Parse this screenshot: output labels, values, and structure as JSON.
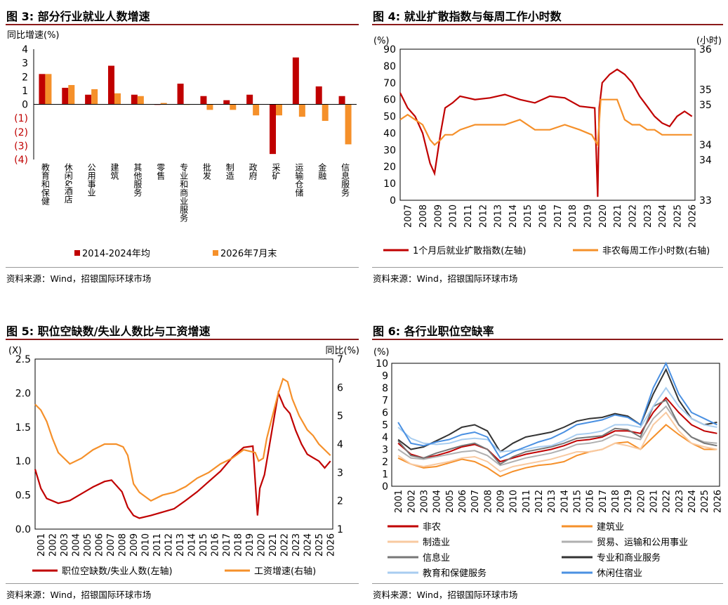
{
  "panels": {
    "p3": {
      "title": "图 3: 部分行业就业人数增速",
      "source": "资料来源：Wind，招银国际环球市场"
    },
    "p4": {
      "title": "图 4: 就业扩散指数与每周工作小时数",
      "source": "资料来源：Wind，招银国际环球市场"
    },
    "p5": {
      "title": "图 5: 职位空缺数/失业人数比与工资增速",
      "source": "资料来源：Wind，招银国际环球市场"
    },
    "p6": {
      "title": "图 6: 各行业职位空缺率",
      "source": "资料来源：Wind，招银国际环球市场"
    }
  },
  "colors": {
    "dark_red": "#c00000",
    "orange": "#f5902a",
    "light_orange": "#f8c9a0",
    "grey": "#b0b0b0",
    "dark_grey": "#777777",
    "black": "#333333",
    "light_blue": "#a8cdf0",
    "blue": "#4a90e2"
  },
  "chart_data": [
    {
      "id": "p3",
      "type": "bar",
      "ylabel": "同比增速(%)",
      "ylim": [
        -4,
        4
      ],
      "yticks": [
        "4",
        "3",
        "2",
        "1",
        "0",
        "(1)",
        "(2)",
        "(3)",
        "(4)"
      ],
      "categories": [
        "教育和保健",
        "休闲&酒店",
        "公用事业",
        "建筑",
        "其他服务",
        "零售",
        "专业和商业服务",
        "批发",
        "制造",
        "政府",
        "采矿",
        "运输仓储",
        "金融",
        "信息服务"
      ],
      "series": [
        {
          "name": "2014-2024年均",
          "color": "#c00000",
          "values": [
            2.2,
            1.2,
            0.7,
            2.8,
            0.7,
            0.0,
            1.5,
            0.6,
            0.3,
            0.7,
            -3.6,
            3.4,
            1.3,
            0.6
          ]
        },
        {
          "name": "2026年7月末",
          "color": "#f5902a",
          "values": [
            2.2,
            1.4,
            1.1,
            0.8,
            0.6,
            0.1,
            0.0,
            -0.4,
            -0.4,
            -0.8,
            -0.8,
            -0.9,
            -1.2,
            -2.9
          ]
        }
      ],
      "legend": "bottom"
    },
    {
      "id": "p4",
      "type": "line",
      "ylabel_left": "(%)",
      "ylabel_right": "(小时)",
      "ylim_left": [
        0,
        90
      ],
      "ylim_right": [
        33,
        36
      ],
      "yticks_left": [
        "0",
        "10",
        "20",
        "30",
        "40",
        "50",
        "60",
        "70",
        "80",
        "90"
      ],
      "yticks_right": [
        "33",
        "34",
        "34",
        "35",
        "35",
        "36"
      ],
      "x_labels": [
        "2007",
        "2008",
        "2009",
        "2010",
        "2011",
        "2012",
        "2013",
        "2014",
        "2015",
        "2016",
        "2017",
        "2018",
        "2019",
        "2020",
        "2021",
        "2022",
        "2023",
        "2024",
        "2025",
        "2026"
      ],
      "series": [
        {
          "name": "1个月后就业扩散指数(左轴)",
          "axis": "left",
          "color": "#c00000",
          "x": [
            2007.0,
            2007.5,
            2008.0,
            2008.5,
            2009.0,
            2009.3,
            2009.7,
            2010.0,
            2010.5,
            2011.0,
            2012.0,
            2013.0,
            2014.0,
            2015.0,
            2016.0,
            2017.0,
            2018.0,
            2019.0,
            2020.0,
            2020.2,
            2020.3,
            2020.5,
            2021.0,
            2021.5,
            2022.0,
            2022.5,
            2023.0,
            2023.5,
            2024.0,
            2024.5,
            2025.0,
            2025.5,
            2026.0,
            2026.5
          ],
          "y": [
            64,
            55,
            50,
            40,
            22,
            16,
            40,
            55,
            58,
            62,
            60,
            61,
            63,
            60,
            58,
            62,
            61,
            56,
            55,
            2,
            55,
            70,
            75,
            78,
            75,
            70,
            62,
            56,
            50,
            46,
            44,
            50,
            53,
            50
          ]
        },
        {
          "name": "非农每周工作小时数(右轴)",
          "axis": "right",
          "color": "#f5902a",
          "x": [
            2007.0,
            2007.5,
            2008.0,
            2008.5,
            2009.0,
            2009.3,
            2009.7,
            2010.0,
            2010.5,
            2011.0,
            2012.0,
            2013.0,
            2014.0,
            2015.0,
            2016.0,
            2017.0,
            2018.0,
            2019.0,
            2019.8,
            2020.2,
            2020.4,
            2021.0,
            2021.5,
            2022.0,
            2022.5,
            2023.0,
            2023.5,
            2024.0,
            2024.5,
            2025.0,
            2025.5,
            2026.0,
            2026.5
          ],
          "y": [
            34.6,
            34.7,
            34.6,
            34.5,
            34.2,
            34.1,
            34.2,
            34.3,
            34.3,
            34.4,
            34.5,
            34.5,
            34.5,
            34.6,
            34.4,
            34.4,
            34.5,
            34.4,
            34.3,
            34.1,
            35.0,
            35.0,
            35.0,
            34.6,
            34.5,
            34.5,
            34.4,
            34.4,
            34.3,
            34.3,
            34.3,
            34.3,
            34.3
          ]
        }
      ],
      "legend": "bottom"
    },
    {
      "id": "p5",
      "type": "line",
      "ylabel_left": "(X)",
      "ylabel_right": "同比(%)",
      "ylim_left": [
        0,
        2.5
      ],
      "ylim_right": [
        1,
        7
      ],
      "yticks_left": [
        "0.0",
        "0.5",
        "1.0",
        "1.5",
        "2.0",
        "2.5"
      ],
      "yticks_right": [
        "1",
        "2",
        "3",
        "4",
        "5",
        "6",
        "7"
      ],
      "x_labels": [
        "2001",
        "2002",
        "2003",
        "2004",
        "2005",
        "2006",
        "2007",
        "2008",
        "2009",
        "2010",
        "2011",
        "2012",
        "2013",
        "2014",
        "2015",
        "2016",
        "2017",
        "2018",
        "2019",
        "2020",
        "2021",
        "2022",
        "2023",
        "2024",
        "2025",
        "2026"
      ],
      "series": [
        {
          "name": "职位空缺数/失业人数(左轴)",
          "axis": "left",
          "color": "#c00000",
          "x": [
            2001.0,
            2001.5,
            2002.0,
            2003.0,
            2004.0,
            2005.0,
            2006.0,
            2007.0,
            2007.6,
            2008.5,
            2009.0,
            2009.5,
            2010.0,
            2011.0,
            2012.0,
            2013.0,
            2014.0,
            2015.0,
            2016.0,
            2017.0,
            2018.0,
            2019.0,
            2019.8,
            2020.2,
            2020.4,
            2020.8,
            2021.0,
            2021.5,
            2022.0,
            2022.5,
            2023.0,
            2023.5,
            2024.0,
            2024.5,
            2025.0,
            2025.5,
            2026.0,
            2026.5
          ],
          "y": [
            0.88,
            0.6,
            0.45,
            0.38,
            0.42,
            0.52,
            0.62,
            0.7,
            0.72,
            0.55,
            0.32,
            0.2,
            0.16,
            0.2,
            0.25,
            0.3,
            0.42,
            0.55,
            0.7,
            0.85,
            1.05,
            1.2,
            1.22,
            0.2,
            0.6,
            0.8,
            1.0,
            1.5,
            2.0,
            1.8,
            1.7,
            1.45,
            1.25,
            1.1,
            1.05,
            1.0,
            0.9,
            1.0
          ]
        },
        {
          "name": "工资增速(右轴)",
          "axis": "right",
          "color": "#f5902a",
          "x": [
            2001.0,
            2001.5,
            2002.0,
            2002.5,
            2003.0,
            2004.0,
            2005.0,
            2006.0,
            2007.0,
            2008.0,
            2008.6,
            2009.0,
            2009.5,
            2010.0,
            2011.0,
            2012.0,
            2013.0,
            2014.0,
            2015.0,
            2016.0,
            2017.0,
            2018.0,
            2019.0,
            2020.0,
            2020.3,
            2020.7,
            2021.0,
            2021.5,
            2022.0,
            2022.4,
            2022.8,
            2023.2,
            2023.8,
            2024.5,
            2025.0,
            2025.5,
            2026.0,
            2026.5
          ],
          "y": [
            5.4,
            5.2,
            4.8,
            4.2,
            3.7,
            3.3,
            3.5,
            3.8,
            4.0,
            4.0,
            3.9,
            3.6,
            2.6,
            2.3,
            2.0,
            2.2,
            2.3,
            2.5,
            2.8,
            3.0,
            3.3,
            3.5,
            3.8,
            3.7,
            3.4,
            3.5,
            4.2,
            5.0,
            5.8,
            6.3,
            6.2,
            5.6,
            5.0,
            4.5,
            4.3,
            4.0,
            3.8,
            3.6
          ]
        }
      ],
      "legend": "bottom"
    },
    {
      "id": "p6",
      "type": "line",
      "ylabel": "(%)",
      "ylim": [
        0,
        10
      ],
      "yticks": [
        "0",
        "1",
        "2",
        "3",
        "4",
        "5",
        "6",
        "7",
        "8",
        "9",
        "10"
      ],
      "x_labels": [
        "2001",
        "2002",
        "2003",
        "2004",
        "2005",
        "2006",
        "2007",
        "2008",
        "2009",
        "2010",
        "2011",
        "2012",
        "2013",
        "2014",
        "2015",
        "2016",
        "2017",
        "2018",
        "2019",
        "2020",
        "2021",
        "2022",
        "2023",
        "2024",
        "2025",
        "2026"
      ],
      "x": [
        2001,
        2002,
        2003,
        2004,
        2005,
        2006,
        2007,
        2008,
        2009,
        2010,
        2011,
        2012,
        2013,
        2014,
        2015,
        2016,
        2017,
        2018,
        2019,
        2020,
        2021,
        2022,
        2023,
        2024,
        2025,
        2026
      ],
      "series": [
        {
          "name": "非农",
          "color": "#c00000",
          "y": [
            3.5,
            2.6,
            2.3,
            2.5,
            2.8,
            3.2,
            3.4,
            3.0,
            2.0,
            2.3,
            2.6,
            2.8,
            3.0,
            3.3,
            3.7,
            3.8,
            4.0,
            4.5,
            4.5,
            4.3,
            6.0,
            7.2,
            6.0,
            5.0,
            4.5,
            4.3
          ]
        },
        {
          "name": "建筑业",
          "color": "#f5902a",
          "y": [
            2.3,
            1.8,
            1.5,
            1.6,
            1.9,
            2.2,
            2.0,
            1.5,
            0.8,
            1.2,
            1.5,
            1.7,
            1.8,
            2.0,
            2.5,
            2.8,
            3.0,
            3.5,
            3.6,
            3.0,
            4.0,
            5.0,
            4.2,
            3.5,
            3.0,
            3.0
          ]
        },
        {
          "name": "制造业",
          "color": "#f8c9a0",
          "y": [
            2.5,
            1.8,
            1.6,
            1.8,
            2.0,
            2.3,
            2.4,
            2.0,
            1.2,
            1.6,
            1.8,
            2.0,
            2.2,
            2.5,
            2.8,
            2.8,
            3.0,
            3.5,
            3.3,
            3.0,
            5.0,
            6.0,
            4.5,
            3.5,
            3.2,
            3.0
          ]
        },
        {
          "name": "贸易、运输和公用事业",
          "color": "#b0b0b0",
          "y": [
            3.0,
            2.3,
            2.2,
            2.4,
            2.6,
            2.8,
            2.9,
            2.5,
            1.7,
            2.0,
            2.3,
            2.5,
            2.7,
            3.0,
            3.4,
            3.5,
            3.7,
            4.2,
            4.0,
            3.8,
            5.5,
            6.5,
            5.0,
            4.0,
            3.6,
            3.5
          ]
        },
        {
          "name": "信息业",
          "color": "#777777",
          "y": [
            3.7,
            2.5,
            2.3,
            2.7,
            3.0,
            3.3,
            3.5,
            3.0,
            1.8,
            2.4,
            2.8,
            3.0,
            3.2,
            3.5,
            3.9,
            4.0,
            4.1,
            4.7,
            4.6,
            4.0,
            6.5,
            7.0,
            5.0,
            4.0,
            3.5,
            3.3
          ]
        },
        {
          "name": "专业和商业服务",
          "color": "#333333",
          "y": [
            3.8,
            3.0,
            3.2,
            3.7,
            4.2,
            4.8,
            5.0,
            4.5,
            2.8,
            3.5,
            4.0,
            4.2,
            4.4,
            4.8,
            5.3,
            5.5,
            5.6,
            5.9,
            5.7,
            5.0,
            7.5,
            9.5,
            7.0,
            5.5,
            5.0,
            5.2
          ]
        },
        {
          "name": "教育和保健服务",
          "color": "#a8cdf0",
          "y": [
            4.8,
            3.9,
            3.5,
            3.4,
            3.5,
            3.8,
            3.9,
            3.8,
            2.8,
            2.9,
            3.0,
            3.2,
            3.3,
            3.7,
            4.2,
            4.3,
            4.5,
            5.0,
            5.0,
            4.8,
            6.5,
            8.0,
            6.5,
            5.5,
            5.0,
            4.8
          ]
        },
        {
          "name": "休闲住宿业",
          "color": "#4a90e2",
          "y": [
            5.2,
            3.5,
            3.3,
            3.6,
            3.8,
            4.2,
            4.4,
            4.0,
            2.3,
            2.8,
            3.2,
            3.6,
            3.9,
            4.4,
            5.0,
            5.2,
            5.4,
            5.8,
            5.6,
            5.0,
            8.0,
            10.0,
            7.5,
            6.0,
            5.5,
            5.0
          ]
        }
      ],
      "legend": "bottom"
    }
  ]
}
